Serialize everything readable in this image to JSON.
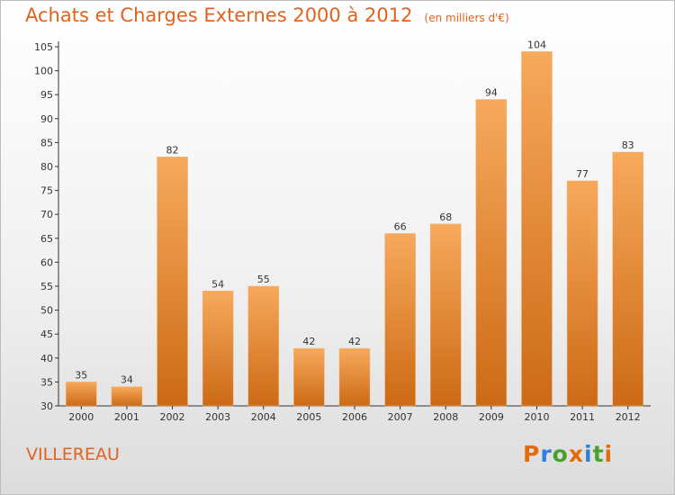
{
  "title": "Achats et Charges Externes 2000 à 2012",
  "subtitle": "(en milliers d'€)",
  "place": "VILLEREAU",
  "brand": "Proxiti",
  "brand_colors": [
    "#e36c09",
    "#2f7fd6",
    "#4aa02c",
    "#e36c09",
    "#2f7fd6",
    "#4aa02c",
    "#e36c09"
  ],
  "colors": {
    "text": "#e2631d",
    "bar_light": "#f7a95c",
    "bar_dark": "#cc6a16",
    "axis": "#333333"
  },
  "chart_data": {
    "type": "bar",
    "categories": [
      "2000",
      "2001",
      "2002",
      "2003",
      "2004",
      "2005",
      "2006",
      "2007",
      "2008",
      "2009",
      "2010",
      "2011",
      "2012"
    ],
    "values": [
      35,
      34,
      82,
      54,
      55,
      42,
      42,
      66,
      68,
      94,
      104,
      77,
      83
    ],
    "ylim": [
      30,
      105
    ],
    "yticks": [
      30,
      35,
      40,
      45,
      50,
      55,
      60,
      65,
      70,
      75,
      80,
      85,
      90,
      95,
      100,
      105
    ],
    "data_labels": true,
    "grid": false
  }
}
